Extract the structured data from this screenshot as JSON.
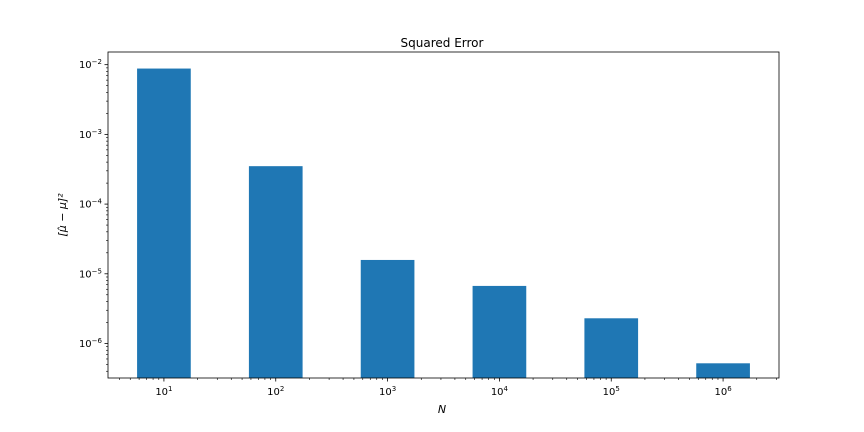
{
  "chart_data": {
    "type": "bar",
    "title": "Squared Error",
    "xlabel": "N",
    "ylabel": "[μ̂ − μ]²",
    "y_scale": "log",
    "ylim": [
      3.2e-07,
      0.0152
    ],
    "grid": false,
    "legend": "none",
    "categories": [
      "10^1",
      "10^2",
      "10^3",
      "10^4",
      "10^5",
      "10^6"
    ],
    "x_tick_labels": [
      {
        "base": "10",
        "exp": "1"
      },
      {
        "base": "10",
        "exp": "2"
      },
      {
        "base": "10",
        "exp": "3"
      },
      {
        "base": "10",
        "exp": "4"
      },
      {
        "base": "10",
        "exp": "5"
      },
      {
        "base": "10",
        "exp": "6"
      }
    ],
    "y_major_ticks": [
      {
        "value": 1e-06,
        "base": "10",
        "exp": "−6"
      },
      {
        "value": 1e-05,
        "base": "10",
        "exp": "−5"
      },
      {
        "value": 0.0001,
        "base": "10",
        "exp": "−4"
      },
      {
        "value": 0.001,
        "base": "10",
        "exp": "−3"
      },
      {
        "value": 0.01,
        "base": "10",
        "exp": "−2"
      }
    ],
    "values": [
      0.0088,
      0.00035,
      1.58e-05,
      6.7e-06,
      2.3e-06,
      5.2e-07
    ],
    "bar_color": "#1f77b4"
  }
}
